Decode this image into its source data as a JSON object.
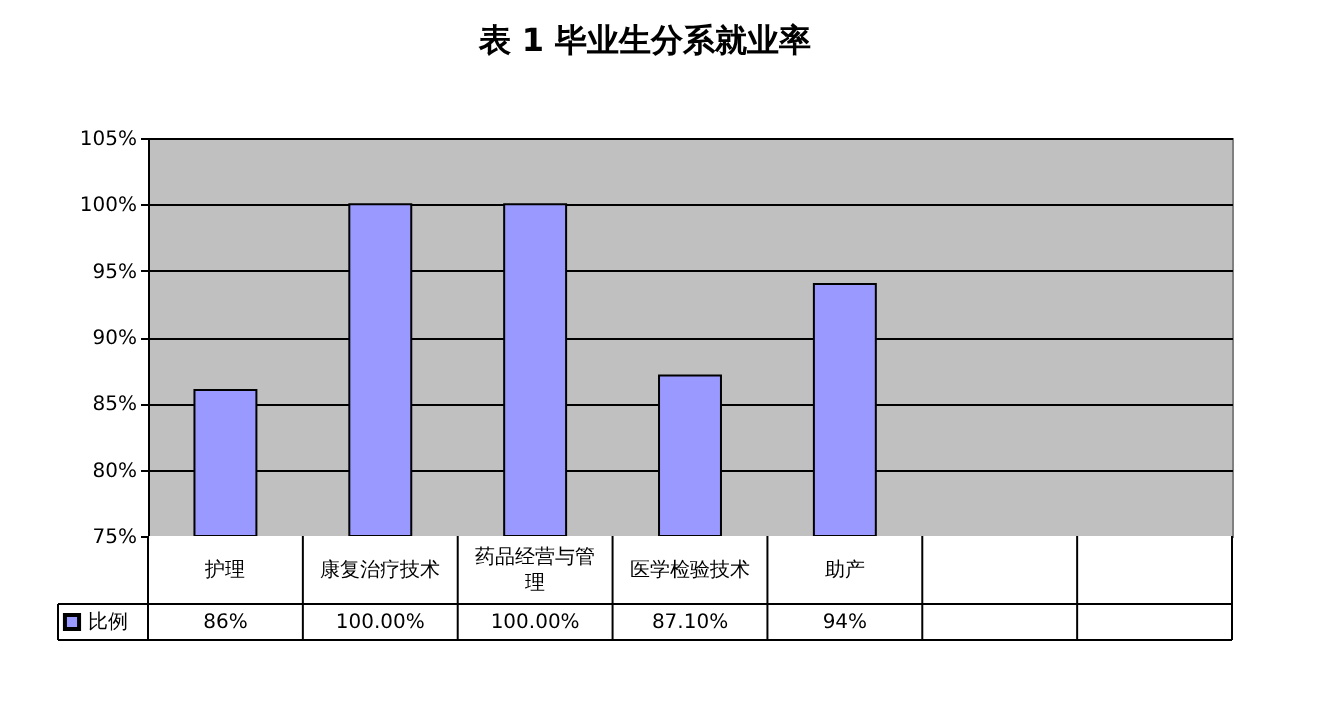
{
  "chart_data": {
    "type": "bar",
    "title": "表 1  毕业生分系就业率",
    "categories": [
      "护理",
      "康复治疗技术",
      "药品经营与管理",
      "医学检验技术",
      "助产",
      null,
      null
    ],
    "series": [
      {
        "name": "比例",
        "color": "#9999ff",
        "values": [
          86,
          100,
          100,
          87.1,
          94,
          null,
          null
        ],
        "value_labels": [
          "86%",
          "100.00%",
          "100.00%",
          "87.10%",
          "94%",
          null,
          null
        ]
      }
    ],
    "ylim": [
      75,
      105
    ],
    "yticks": [
      {
        "value": 75,
        "label": "75%"
      },
      {
        "value": 80,
        "label": "80%"
      },
      {
        "value": 85,
        "label": "85%"
      },
      {
        "value": 90,
        "label": "90%"
      },
      {
        "value": 95,
        "label": "95%"
      },
      {
        "value": 100,
        "label": "100%"
      },
      {
        "value": 105,
        "label": "105%"
      }
    ],
    "grid": "y",
    "legend": "bottom left"
  }
}
